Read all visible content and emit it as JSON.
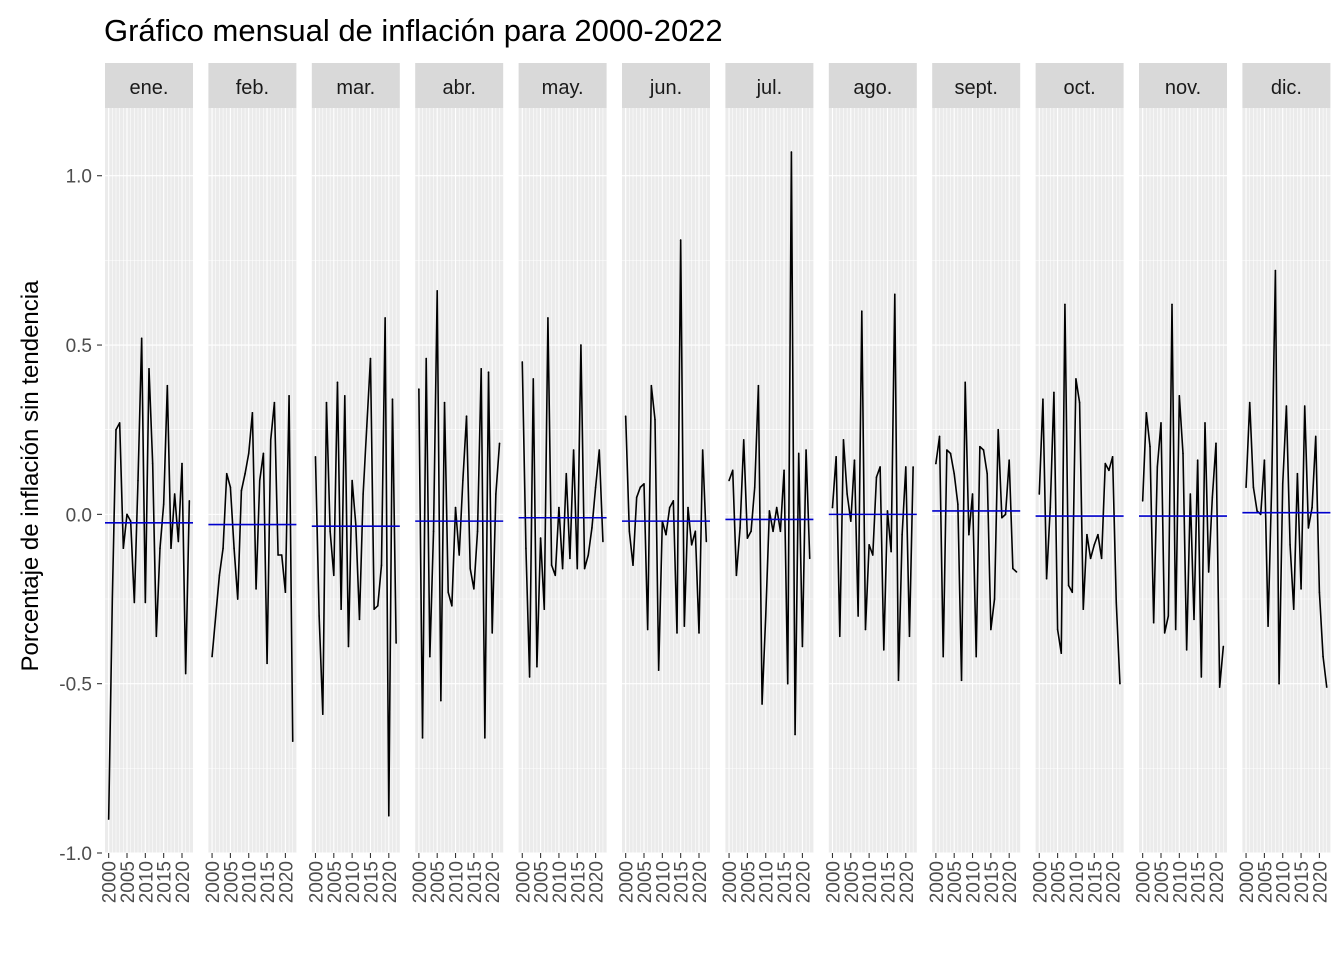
{
  "chart_data": {
    "type": "line",
    "title": "Gráfico mensual de inflación para 2000-2022",
    "xlabel": "",
    "ylabel": "Porcentaje de inflación sin tendencia",
    "ylim": [
      -1.0,
      1.2
    ],
    "yticks": [
      -1.0,
      -0.5,
      0.0,
      0.5,
      1.0
    ],
    "ytick_labels": [
      "-1.0",
      "-0.5",
      "0.0",
      "0.5",
      "1.0"
    ],
    "xlim": [
      1999,
      2023
    ],
    "xticks": [
      2000,
      2005,
      2010,
      2015,
      2020
    ],
    "xtick_labels": [
      "2000",
      "2005",
      "2010",
      "2015",
      "2020"
    ],
    "grid": true,
    "colors": {
      "series_line": "#000000",
      "mean_line": "#0000cc",
      "panel_bg": "#ebebeb",
      "strip_bg": "#d9d9d9",
      "grid": "#ffffff"
    },
    "years": [
      2000,
      2001,
      2002,
      2003,
      2004,
      2005,
      2006,
      2007,
      2008,
      2009,
      2010,
      2011,
      2012,
      2013,
      2014,
      2015,
      2016,
      2017,
      2018,
      2019,
      2020,
      2021,
      2022
    ],
    "panels": [
      {
        "month": "ene.",
        "mean": -0.025,
        "values": [
          -0.9,
          -0.25,
          0.25,
          0.27,
          -0.1,
          0.0,
          -0.02,
          -0.26,
          0.1,
          0.52,
          -0.26,
          0.43,
          0.15,
          -0.36,
          -0.1,
          0.03,
          0.38,
          -0.1,
          0.06,
          -0.08,
          0.15,
          -0.47,
          0.04
        ]
      },
      {
        "month": "feb.",
        "mean": -0.03,
        "values": [
          -0.42,
          -0.3,
          -0.18,
          -0.1,
          0.12,
          0.08,
          -0.1,
          -0.25,
          0.07,
          0.12,
          0.18,
          0.3,
          -0.22,
          0.1,
          0.18,
          -0.44,
          0.22,
          0.33,
          -0.12,
          -0.12,
          -0.23,
          0.35,
          -0.67
        ]
      },
      {
        "month": "mar.",
        "mean": -0.035,
        "values": [
          0.17,
          -0.3,
          -0.59,
          0.33,
          -0.05,
          -0.18,
          0.39,
          -0.28,
          0.35,
          -0.39,
          0.1,
          -0.03,
          -0.31,
          0.06,
          0.26,
          0.46,
          -0.28,
          -0.27,
          -0.15,
          0.58,
          -0.89,
          0.34,
          -0.38
        ]
      },
      {
        "month": "abr.",
        "mean": -0.02,
        "values": [
          0.37,
          -0.66,
          0.46,
          -0.42,
          -0.05,
          0.66,
          -0.55,
          0.33,
          -0.23,
          -0.27,
          0.02,
          -0.12,
          0.1,
          0.29,
          -0.16,
          -0.22,
          -0.05,
          0.43,
          -0.66,
          0.42,
          -0.35,
          0.06,
          0.21
        ]
      },
      {
        "month": "may.",
        "mean": -0.01,
        "values": [
          0.45,
          -0.1,
          -0.48,
          0.4,
          -0.45,
          -0.07,
          -0.28,
          0.58,
          -0.15,
          -0.18,
          0.02,
          -0.16,
          0.12,
          -0.13,
          0.19,
          -0.16,
          0.5,
          -0.16,
          -0.12,
          -0.04,
          0.08,
          0.19,
          -0.08
        ]
      },
      {
        "month": "jun.",
        "mean": -0.02,
        "values": [
          0.29,
          -0.05,
          -0.15,
          0.05,
          0.08,
          0.09,
          -0.34,
          0.38,
          0.28,
          -0.46,
          -0.02,
          -0.06,
          0.02,
          0.04,
          -0.35,
          0.81,
          -0.33,
          0.02,
          -0.09,
          -0.05,
          -0.35,
          0.19,
          -0.08
        ]
      },
      {
        "month": "jul.",
        "mean": -0.015,
        "values": [
          0.1,
          0.13,
          -0.18,
          -0.04,
          0.22,
          -0.07,
          -0.05,
          0.08,
          0.38,
          -0.56,
          -0.3,
          0.01,
          -0.05,
          0.02,
          -0.05,
          0.13,
          -0.5,
          1.07,
          -0.65,
          0.18,
          -0.39,
          0.19,
          -0.13
        ]
      },
      {
        "month": "ago.",
        "mean": 0.0,
        "values": [
          0.02,
          0.17,
          -0.36,
          0.22,
          0.06,
          -0.02,
          0.16,
          -0.3,
          0.6,
          -0.34,
          -0.09,
          -0.12,
          0.11,
          0.14,
          -0.4,
          0.01,
          -0.11,
          0.65,
          -0.49,
          -0.06,
          0.14,
          -0.36,
          0.14
        ]
      },
      {
        "month": "sept.",
        "mean": 0.01,
        "values": [
          0.15,
          0.23,
          -0.42,
          0.19,
          0.18,
          0.12,
          0.03,
          -0.49,
          0.39,
          -0.06,
          0.06,
          -0.42,
          0.2,
          0.19,
          0.12,
          -0.34,
          -0.25,
          0.25,
          -0.01,
          0.0,
          0.16,
          -0.16,
          -0.17
        ]
      },
      {
        "month": "oct.",
        "mean": -0.005,
        "values": [
          0.06,
          0.34,
          -0.19,
          0.02,
          0.36,
          -0.34,
          -0.41,
          0.62,
          -0.21,
          -0.23,
          0.4,
          0.33,
          -0.28,
          -0.06,
          -0.13,
          -0.09,
          -0.06,
          -0.13,
          0.15,
          0.13,
          0.17,
          -0.26,
          -0.5
        ]
      },
      {
        "month": "nov.",
        "mean": -0.005,
        "values": [
          0.04,
          0.3,
          0.2,
          -0.32,
          0.14,
          0.27,
          -0.35,
          -0.3,
          0.62,
          -0.34,
          0.35,
          0.18,
          -0.4,
          0.06,
          -0.31,
          0.16,
          -0.48,
          0.27,
          -0.17,
          0.05,
          0.21,
          -0.51,
          -0.39
        ]
      },
      {
        "month": "dic.",
        "mean": 0.005,
        "values": [
          0.08,
          0.33,
          0.08,
          0.01,
          0.0,
          0.16,
          -0.33,
          0.09,
          0.72,
          -0.5,
          0.09,
          0.32,
          -0.09,
          -0.28,
          0.12,
          -0.22,
          0.32,
          -0.04,
          0.02,
          0.23,
          -0.23,
          -0.42,
          -0.51
        ]
      }
    ]
  }
}
